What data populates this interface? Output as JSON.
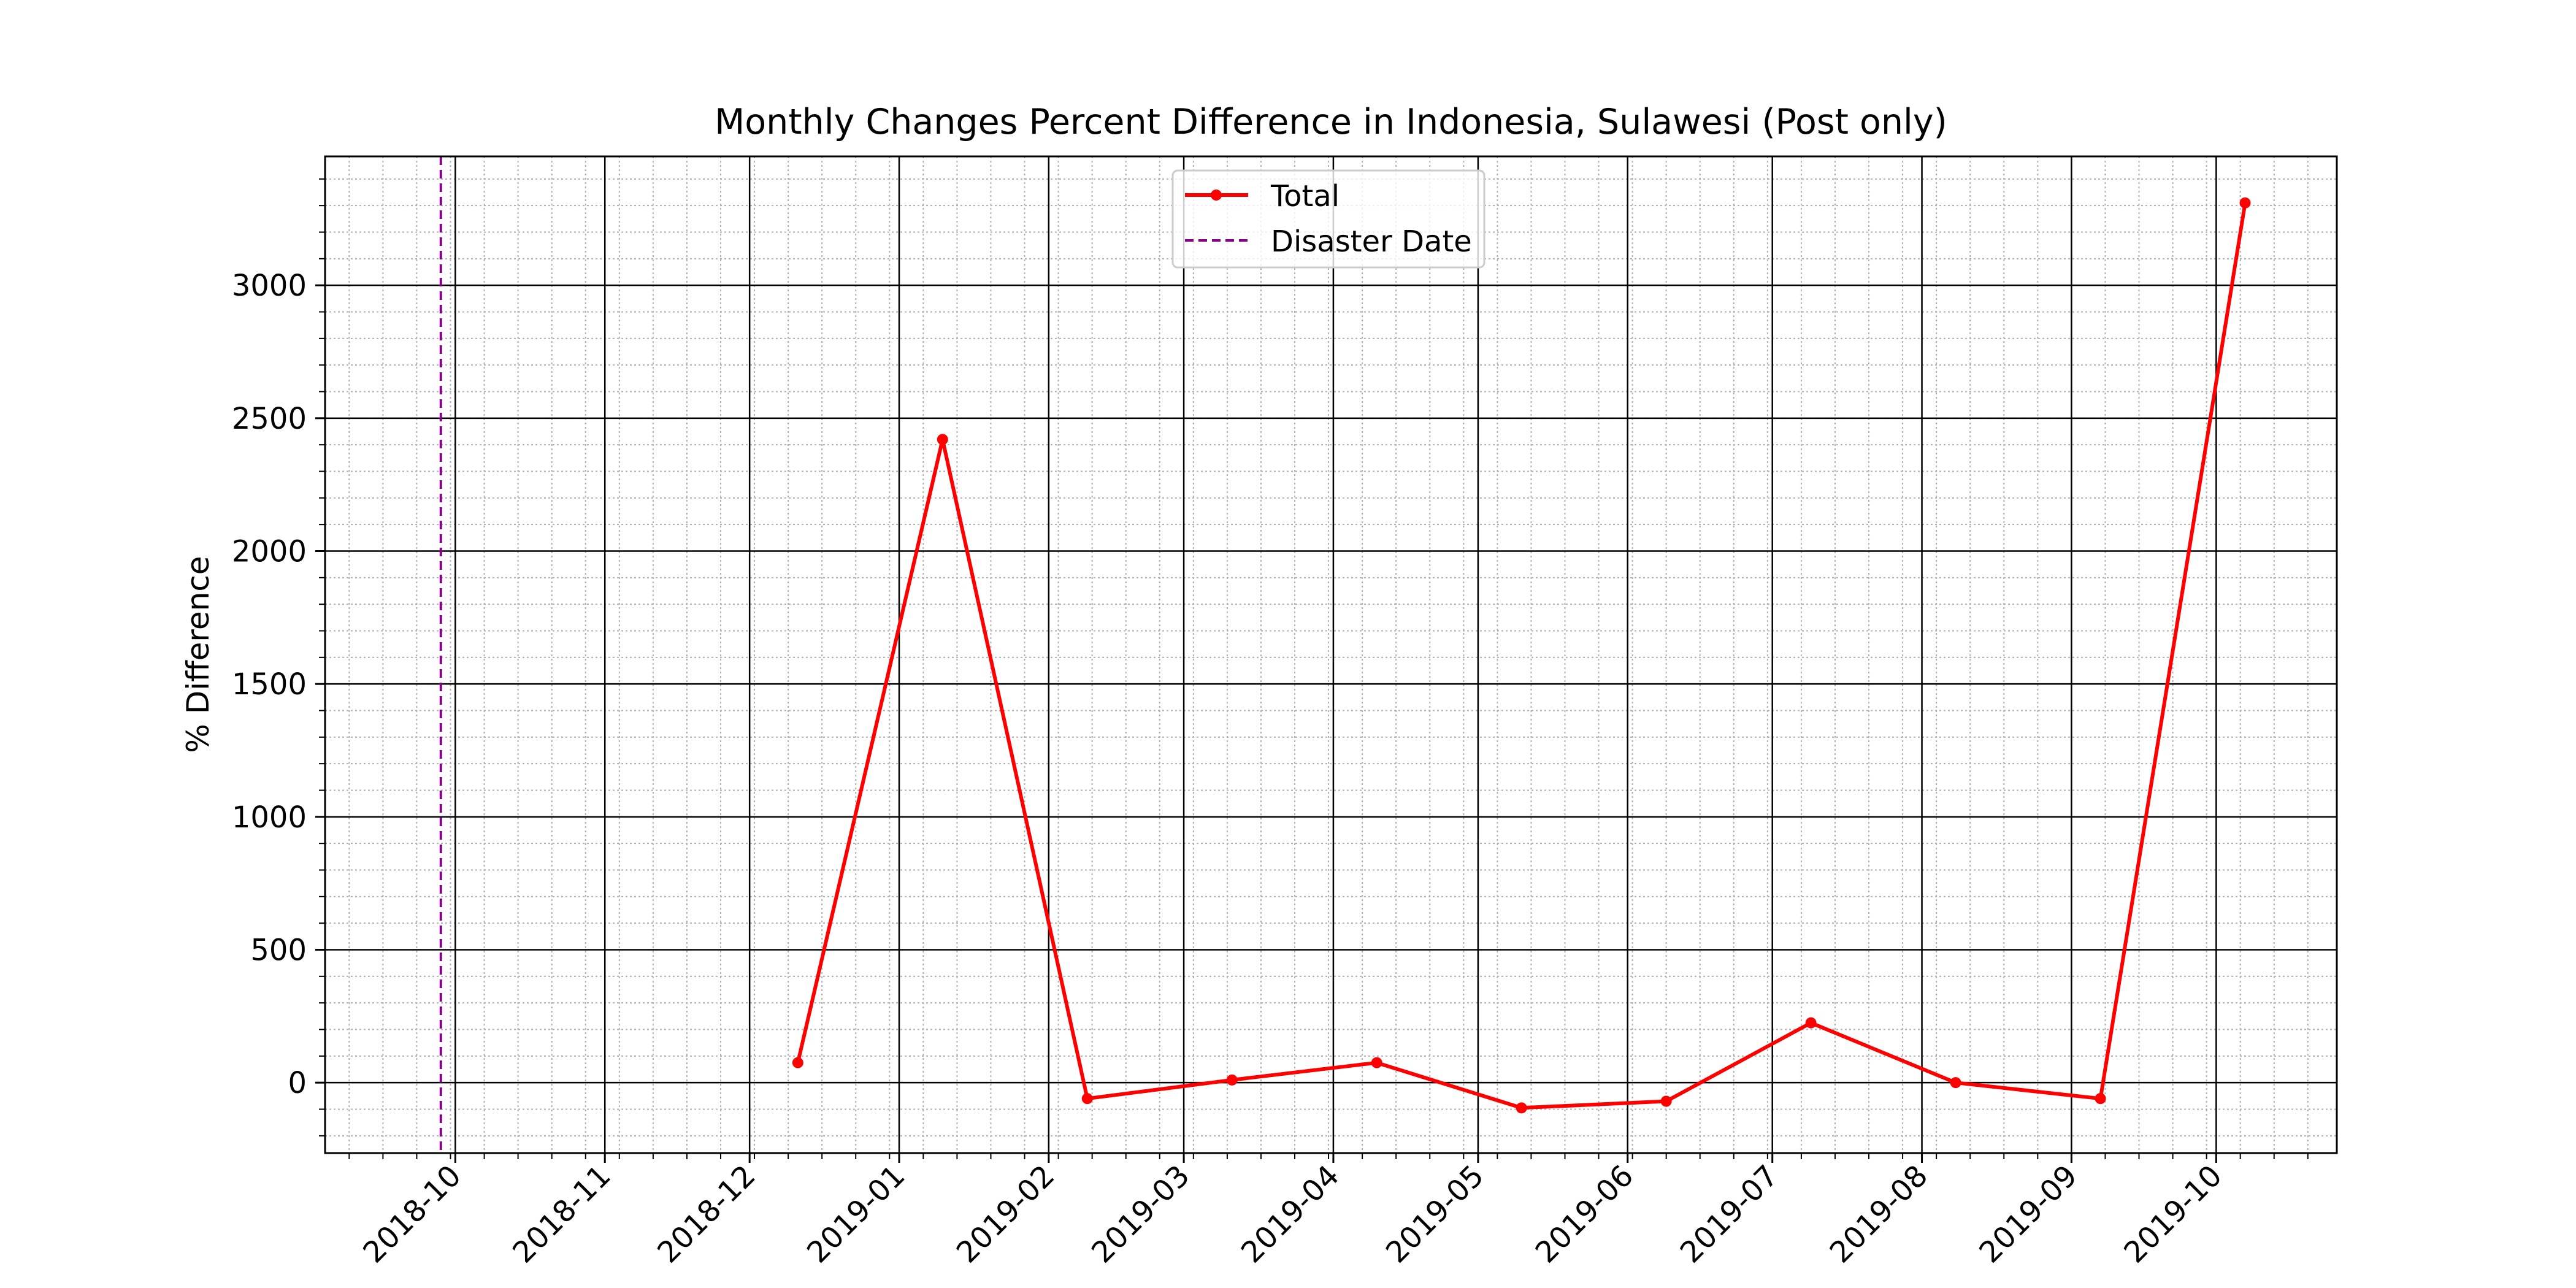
{
  "chart_data": {
    "type": "line",
    "title": "Monthly Changes Percent Difference in Indonesia, Sulawesi (Post only)",
    "xlabel": "",
    "ylabel": "% Difference",
    "x_tick_labels": [
      "2018-10",
      "2018-11",
      "2018-12",
      "2019-01",
      "2019-02",
      "2019-03",
      "2019-04",
      "2019-05",
      "2019-06",
      "2019-07",
      "2019-08",
      "2019-09",
      "2019-10"
    ],
    "y_tick_labels": [
      "0",
      "500",
      "1000",
      "1500",
      "2000",
      "2500",
      "3000"
    ],
    "x_range": [
      "2018-09-04",
      "2019-10-26"
    ],
    "ylim": [
      -265,
      3485
    ],
    "y_ticks": [
      0,
      500,
      1000,
      1500,
      2000,
      2500,
      3000
    ],
    "grid": true,
    "minor_grid": true,
    "legend_position": "top-center",
    "series": [
      {
        "name": "Total",
        "color": "#ff0000",
        "marker": "circle",
        "points": [
          {
            "x": "2018-12-11",
            "y": 75
          },
          {
            "x": "2019-01-10",
            "y": 2420
          },
          {
            "x": "2019-02-09",
            "y": -60
          },
          {
            "x": "2019-03-11",
            "y": 10
          },
          {
            "x": "2019-04-10",
            "y": 75
          },
          {
            "x": "2019-05-10",
            "y": -95
          },
          {
            "x": "2019-06-09",
            "y": -70
          },
          {
            "x": "2019-07-09",
            "y": 225
          },
          {
            "x": "2019-08-08",
            "y": 0
          },
          {
            "x": "2019-09-07",
            "y": -60
          },
          {
            "x": "2019-10-07",
            "y": 3310
          }
        ]
      }
    ],
    "vlines": [
      {
        "name": "Disaster Date",
        "x": "2018-09-28",
        "color": "#8b008b",
        "style": "dashed"
      }
    ]
  }
}
